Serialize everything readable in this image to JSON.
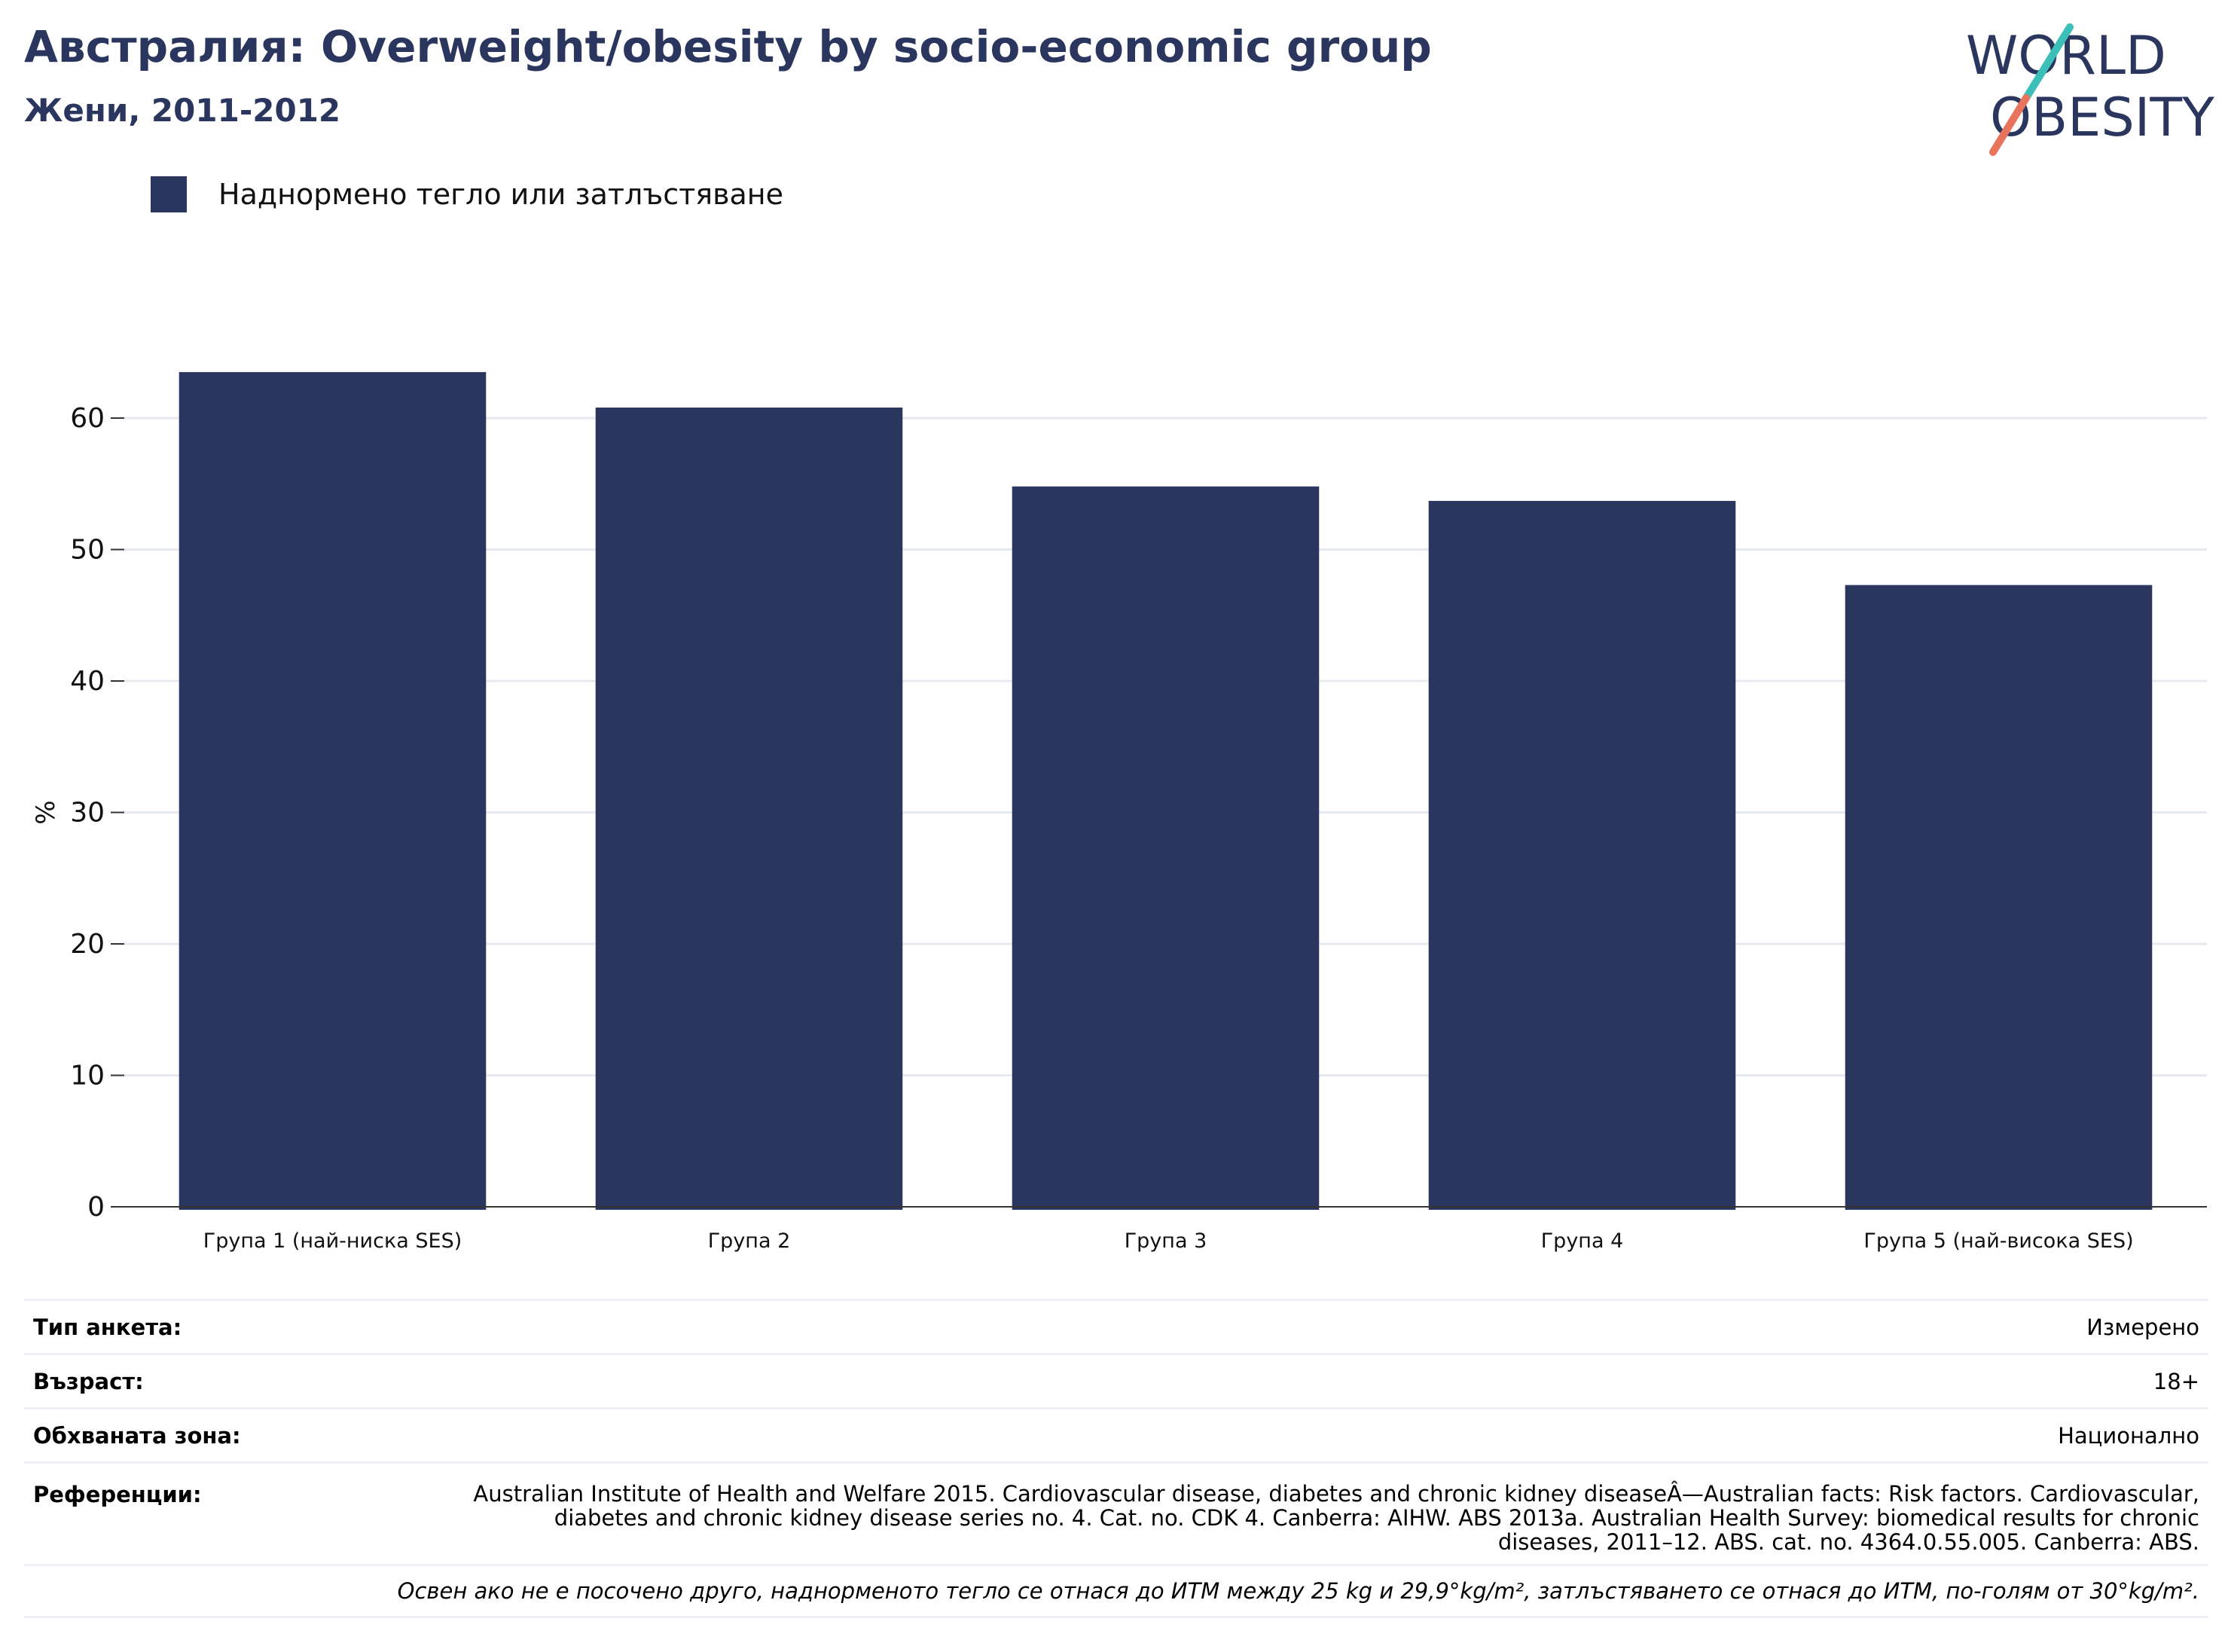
{
  "header": {
    "title": "Австралия: Overweight/obesity by socio-economic group",
    "subtitle": "Жени, 2011-2012"
  },
  "logo": {
    "line1": "WORLD",
    "line2": "OBESITY",
    "colors": {
      "text": "#2b365f",
      "slash_top": "#3bbfb8",
      "slash_bottom": "#e8745e"
    }
  },
  "colors": {
    "bar": "#2b365f",
    "grid": "#e8eaf2",
    "axis": "#333333",
    "text": "#111111"
  },
  "legend": {
    "label": "Наднормено тегло или затлъстяване"
  },
  "chart_data": {
    "type": "bar",
    "title": "Австралия: Overweight/obesity by socio-economic group",
    "subtitle": "Жени, 2011-2012",
    "xlabel": "",
    "ylabel": "%",
    "categories": [
      "Група 1 (най-ниска SES)",
      "Група 2",
      "Група 3",
      "Група 4",
      "Група 5 (най-висока SES)"
    ],
    "series": [
      {
        "name": "Наднормено тегло или затлъстяване",
        "values": [
          63.5,
          60.8,
          54.8,
          53.7,
          47.3
        ]
      }
    ],
    "ylim": [
      0,
      70
    ],
    "yticks": [
      0,
      10,
      20,
      30,
      40,
      50,
      60
    ],
    "grid": true,
    "legend_position": "top-left"
  },
  "meta": {
    "survey_type": {
      "label": "Тип анкета:",
      "value": "Измерено"
    },
    "age": {
      "label": "Възраст:",
      "value": "18+"
    },
    "area": {
      "label": "Обхваната зона:",
      "value": "Национално"
    },
    "references": {
      "label": "Референции:",
      "value": "Australian Institute of Health and Welfare 2015. Cardiovascular disease, diabetes and chronic kidney diseaseÂ—Australian facts: Risk factors. Cardiovascular, diabetes and chronic kidney disease series no. 4. Cat. no. CDK 4. Canberra: AIHW. ABS 2013a. Australian Health Survey: biomedical results for chronic diseases, 2011–12. ABS. cat. no. 4364.0.55.005. Canberra: ABS."
    },
    "note": "Освен ако не е посочено друго, наднорменото тегло се отнася до ИТМ между 25 kg и 29,9°kg/m², затлъстяването се отнася до ИТМ, по-голям от 30°kg/m²."
  }
}
